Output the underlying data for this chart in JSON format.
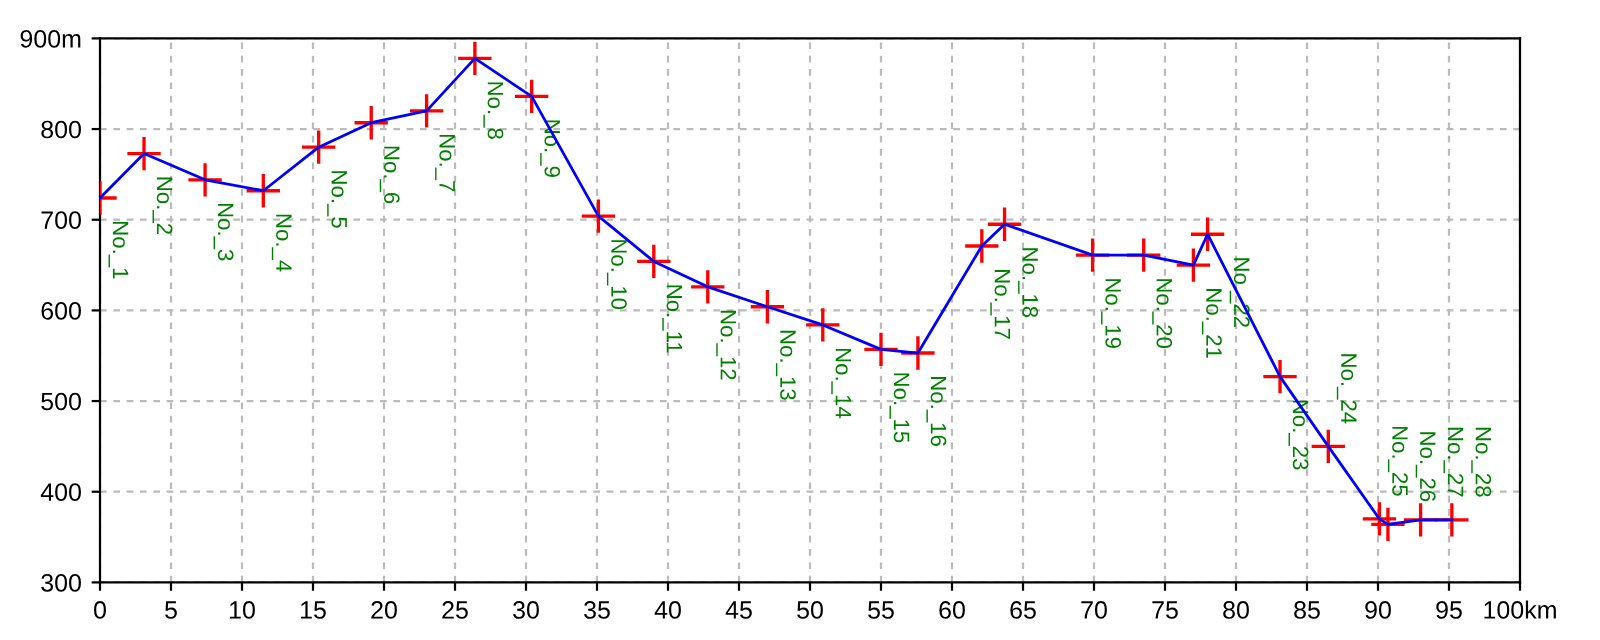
{
  "chart_data": {
    "type": "line",
    "marker": "cross",
    "line_style": "solid",
    "grid": true,
    "legend": false,
    "xlim": [
      0,
      100
    ],
    "ylim": [
      300,
      900
    ],
    "xticks": [
      0,
      5,
      10,
      15,
      20,
      25,
      30,
      35,
      40,
      45,
      50,
      55,
      60,
      65,
      70,
      75,
      80,
      85,
      90,
      95,
      {
        "value": 100,
        "label": "100km"
      }
    ],
    "yticks": [
      300,
      400,
      500,
      600,
      700,
      800,
      {
        "value": 900,
        "label": "900m"
      }
    ],
    "series": [
      {
        "color": "#0000ff",
        "colors": [
          "#ff0000",
          "#ff0000",
          "#ff0000",
          "#ff0000",
          "#ff0000",
          "#ff0000",
          "#ff0000",
          "#ff0000",
          "#ff0000",
          "#ff0000",
          "#ff0000",
          "#ff0000",
          "#ff0000",
          "#ff0000",
          "#ff0000",
          "#ff0000",
          "#ff0000",
          "#ff0000",
          "#ff0000",
          "#ff0000",
          "#ff0000",
          "#ff0000",
          "#ff0000",
          "#ff0000",
          "#ff0000",
          "#ff0000",
          "#ff0000",
          "#ff0000"
        ],
        "x": [
          0,
          3.1,
          7.4,
          11.5,
          15.4,
          19.1,
          23.0,
          26.4,
          30.4,
          35.1,
          39.0,
          42.8,
          47.0,
          50.9,
          55.0,
          57.6,
          62.1,
          63.7,
          69.9,
          73.5,
          77.0,
          78.0,
          83.1,
          86.5,
          90.1,
          90.7,
          93.0,
          95.2
        ],
        "values": [
          724,
          773,
          744,
          732,
          780,
          807,
          820,
          878,
          836,
          704,
          654,
          626,
          604,
          584,
          557,
          553,
          671,
          695,
          661,
          661,
          650,
          684,
          527,
          450,
          370,
          364,
          369,
          369
        ]
      }
    ],
    "annotations": [
      {
        "text": "No._1",
        "x": 0,
        "y": 724
      },
      {
        "text": "No._2",
        "x": 3.1,
        "y": 773
      },
      {
        "text": "No._3",
        "x": 7.4,
        "y": 744
      },
      {
        "text": "No._4",
        "x": 11.5,
        "y": 732
      },
      {
        "text": "No._5",
        "x": 15.4,
        "y": 780
      },
      {
        "text": "No._6",
        "x": 19.1,
        "y": 807
      },
      {
        "text": "No._7",
        "x": 23.0,
        "y": 820
      },
      {
        "text": "No._8",
        "x": 26.4,
        "y": 878
      },
      {
        "text": "No._9",
        "x": 30.4,
        "y": 836
      },
      {
        "text": "No._10",
        "x": 35.1,
        "y": 704
      },
      {
        "text": "No._11",
        "x": 39.0,
        "y": 654
      },
      {
        "text": "No._12",
        "x": 42.8,
        "y": 626
      },
      {
        "text": "No._13",
        "x": 47.0,
        "y": 604
      },
      {
        "text": "No._14",
        "x": 50.9,
        "y": 584
      },
      {
        "text": "No._15",
        "x": 55.0,
        "y": 557
      },
      {
        "text": "No._16",
        "x": 57.6,
        "y": 553
      },
      {
        "text": "No._17",
        "x": 62.1,
        "y": 671
      },
      {
        "text": "No._18",
        "x": 63.7,
        "y": 695
      },
      {
        "text": "No._19",
        "x": 69.9,
        "y": 661
      },
      {
        "text": "No._20",
        "x": 73.5,
        "y": 661
      },
      {
        "text": "No._21",
        "x": 77.0,
        "y": 650
      },
      {
        "text": "No._22",
        "x": 78.0,
        "y": 684
      },
      {
        "text": "No._23",
        "x": 83.1,
        "y": 527
      },
      {
        "text": "No._24",
        "x": 86.5,
        "y": 450
      },
      {
        "text": "No._25",
        "x": 90.1,
        "y": 370
      },
      {
        "text": "No._26",
        "x": 90.7,
        "y": 364
      },
      {
        "text": "No._27",
        "x": 93.0,
        "y": 369
      },
      {
        "text": "No._28",
        "x": 95.2,
        "y": 369
      }
    ]
  }
}
